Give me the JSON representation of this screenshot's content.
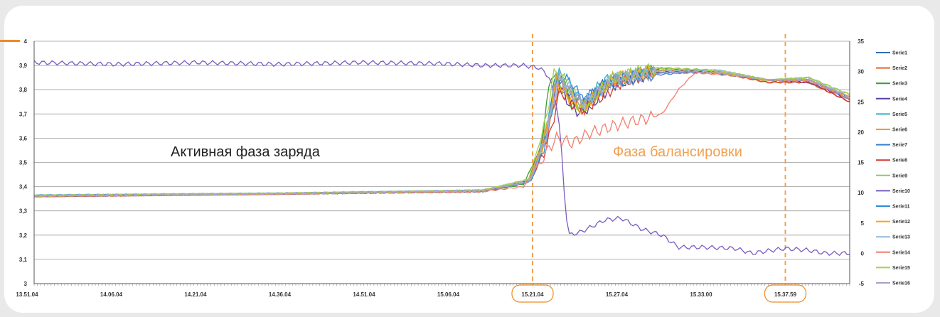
{
  "chart_data": {
    "type": "line",
    "x_ticks": [
      "13.51.04",
      "14.06.04",
      "14.21.04",
      "14.36.04",
      "14.51.04",
      "15.06.04",
      "15.21.04",
      "15.27.04",
      "15.33.00",
      "15.37.59"
    ],
    "highlighted_x_ticks": [
      "15.21.04",
      "15.37.59"
    ],
    "y_left": {
      "min": 3,
      "max": 4,
      "ticks": [
        "3",
        "3,1",
        "3,2",
        "3,3",
        "3,4",
        "3,5",
        "3,6",
        "3,7",
        "3,8",
        "3,9",
        "4"
      ]
    },
    "y_right": {
      "min": -5,
      "max": 35,
      "ticks": [
        "-5",
        "0",
        "5",
        "10",
        "15",
        "20",
        "25",
        "30",
        "35"
      ]
    },
    "grid": true,
    "legend_position": "right",
    "annotations": [
      {
        "text": "Активная фаза заряда",
        "color": "#222222"
      },
      {
        "text": "Фаза балансировки",
        "color": "#f0a050"
      }
    ],
    "phase_boundaries": [
      "15.21.04",
      "15.37.59"
    ],
    "series": [
      {
        "name": "Serie1",
        "color": "#2e6db4",
        "axis": "left",
        "points": [
          [
            0,
            3.36
          ],
          [
            0.3,
            3.37
          ],
          [
            0.55,
            3.38
          ],
          [
            0.605,
            3.42
          ],
          [
            0.625,
            3.57
          ],
          [
            0.64,
            3.86
          ],
          [
            0.655,
            3.8
          ],
          [
            0.67,
            3.73
          ],
          [
            0.7,
            3.83
          ],
          [
            0.75,
            3.88
          ],
          [
            0.82,
            3.88
          ],
          [
            0.9,
            3.84
          ],
          [
            0.95,
            3.84
          ],
          [
            1,
            3.76
          ]
        ]
      },
      {
        "name": "Serie2",
        "color": "#e8632b",
        "axis": "left",
        "points": [
          [
            0,
            3.36
          ],
          [
            0.3,
            3.37
          ],
          [
            0.55,
            3.385
          ],
          [
            0.61,
            3.43
          ],
          [
            0.63,
            3.62
          ],
          [
            0.645,
            3.85
          ],
          [
            0.66,
            3.77
          ],
          [
            0.675,
            3.72
          ],
          [
            0.71,
            3.84
          ],
          [
            0.76,
            3.88
          ],
          [
            0.83,
            3.88
          ],
          [
            0.9,
            3.84
          ],
          [
            0.95,
            3.83
          ],
          [
            1,
            3.75
          ]
        ]
      },
      {
        "name": "Serie3",
        "color": "#33a02c",
        "axis": "left",
        "points": [
          [
            0,
            3.36
          ],
          [
            0.3,
            3.37
          ],
          [
            0.55,
            3.38
          ],
          [
            0.6,
            3.41
          ],
          [
            0.62,
            3.55
          ],
          [
            0.635,
            3.88
          ],
          [
            0.65,
            3.79
          ],
          [
            0.665,
            3.71
          ],
          [
            0.7,
            3.82
          ],
          [
            0.77,
            3.89
          ],
          [
            0.84,
            3.87
          ],
          [
            0.9,
            3.83
          ],
          [
            0.95,
            3.84
          ],
          [
            1,
            3.77
          ]
        ]
      },
      {
        "name": "Serie4",
        "color": "#5b3fa0",
        "axis": "left",
        "points": [
          [
            0,
            3.36
          ],
          [
            0.3,
            3.37
          ],
          [
            0.55,
            3.385
          ],
          [
            0.605,
            3.42
          ],
          [
            0.625,
            3.6
          ],
          [
            0.64,
            3.83
          ],
          [
            0.655,
            3.75
          ],
          [
            0.67,
            3.7
          ],
          [
            0.71,
            3.82
          ],
          [
            0.76,
            3.87
          ],
          [
            0.83,
            3.88
          ],
          [
            0.9,
            3.84
          ],
          [
            0.95,
            3.83
          ],
          [
            1,
            3.76
          ]
        ]
      },
      {
        "name": "Serie5",
        "color": "#2fb0c8",
        "axis": "left",
        "points": [
          [
            0,
            3.365
          ],
          [
            0.3,
            3.372
          ],
          [
            0.55,
            3.385
          ],
          [
            0.61,
            3.43
          ],
          [
            0.628,
            3.63
          ],
          [
            0.642,
            3.87
          ],
          [
            0.658,
            3.82
          ],
          [
            0.672,
            3.74
          ],
          [
            0.7,
            3.84
          ],
          [
            0.76,
            3.87
          ],
          [
            0.83,
            3.87
          ],
          [
            0.9,
            3.84
          ],
          [
            0.95,
            3.84
          ],
          [
            1,
            3.77
          ]
        ]
      },
      {
        "name": "Serie6",
        "color": "#f39a1e",
        "axis": "left",
        "points": [
          [
            0,
            3.362
          ],
          [
            0.3,
            3.371
          ],
          [
            0.55,
            3.384
          ],
          [
            0.608,
            3.43
          ],
          [
            0.627,
            3.6
          ],
          [
            0.641,
            3.84
          ],
          [
            0.656,
            3.76
          ],
          [
            0.671,
            3.72
          ],
          [
            0.71,
            3.85
          ],
          [
            0.77,
            3.88
          ],
          [
            0.84,
            3.87
          ],
          [
            0.9,
            3.83
          ],
          [
            0.95,
            3.84
          ],
          [
            1,
            3.76
          ]
        ]
      },
      {
        "name": "Serie7",
        "color": "#3c7fd0",
        "axis": "left",
        "points": [
          [
            0,
            3.363
          ],
          [
            0.3,
            3.372
          ],
          [
            0.55,
            3.383
          ],
          [
            0.606,
            3.42
          ],
          [
            0.626,
            3.58
          ],
          [
            0.64,
            3.85
          ],
          [
            0.657,
            3.8
          ],
          [
            0.672,
            3.76
          ],
          [
            0.71,
            3.83
          ],
          [
            0.76,
            3.86
          ],
          [
            0.83,
            3.88
          ],
          [
            0.9,
            3.84
          ],
          [
            0.95,
            3.84
          ],
          [
            1,
            3.77
          ]
        ]
      },
      {
        "name": "Serie8",
        "color": "#cf3a33",
        "axis": "left",
        "points": [
          [
            0,
            3.36
          ],
          [
            0.3,
            3.37
          ],
          [
            0.55,
            3.38
          ],
          [
            0.61,
            3.43
          ],
          [
            0.63,
            3.58
          ],
          [
            0.645,
            3.8
          ],
          [
            0.66,
            3.74
          ],
          [
            0.675,
            3.72
          ],
          [
            0.72,
            3.83
          ],
          [
            0.77,
            3.88
          ],
          [
            0.84,
            3.87
          ],
          [
            0.9,
            3.83
          ],
          [
            0.95,
            3.83
          ],
          [
            1,
            3.75
          ]
        ]
      },
      {
        "name": "Serie9",
        "color": "#96c36a",
        "axis": "left",
        "points": [
          [
            0,
            3.364
          ],
          [
            0.3,
            3.372
          ],
          [
            0.55,
            3.384
          ],
          [
            0.607,
            3.42
          ],
          [
            0.627,
            3.62
          ],
          [
            0.642,
            3.88
          ],
          [
            0.657,
            3.81
          ],
          [
            0.673,
            3.73
          ],
          [
            0.71,
            3.85
          ],
          [
            0.77,
            3.89
          ],
          [
            0.84,
            3.88
          ],
          [
            0.9,
            3.84
          ],
          [
            0.95,
            3.85
          ],
          [
            1,
            3.78
          ]
        ]
      },
      {
        "name": "Serie10",
        "color": "#7a5cc0",
        "axis": "right",
        "points": [
          [
            0,
            31.5
          ],
          [
            0.1,
            31.2
          ],
          [
            0.2,
            31.5
          ],
          [
            0.3,
            31.2
          ],
          [
            0.4,
            31.5
          ],
          [
            0.5,
            31.3
          ],
          [
            0.55,
            31.0
          ],
          [
            0.6,
            31.0
          ],
          [
            0.62,
            30.6
          ],
          [
            0.632,
            29
          ],
          [
            0.64,
            25
          ],
          [
            0.645,
            20
          ],
          [
            0.65,
            10
          ],
          [
            0.655,
            3
          ],
          [
            0.67,
            3.5
          ],
          [
            0.7,
            5.5
          ],
          [
            0.72,
            5.8
          ],
          [
            0.745,
            4
          ],
          [
            0.77,
            3
          ],
          [
            0.79,
            1
          ],
          [
            0.82,
            1
          ],
          [
            0.86,
            0.8
          ],
          [
            0.88,
            0
          ],
          [
            0.92,
            0.8
          ],
          [
            0.95,
            0.5
          ],
          [
            0.97,
            0
          ],
          [
            1,
            0
          ]
        ]
      },
      {
        "name": "Serie11",
        "color": "#2a8fd6",
        "axis": "left",
        "points": [
          [
            0,
            3.363
          ],
          [
            0.3,
            3.371
          ],
          [
            0.55,
            3.384
          ],
          [
            0.609,
            3.42
          ],
          [
            0.628,
            3.59
          ],
          [
            0.643,
            3.86
          ],
          [
            0.658,
            3.83
          ],
          [
            0.674,
            3.75
          ],
          [
            0.71,
            3.84
          ],
          [
            0.76,
            3.87
          ],
          [
            0.83,
            3.87
          ],
          [
            0.9,
            3.84
          ],
          [
            0.95,
            3.84
          ],
          [
            1,
            3.76
          ]
        ]
      },
      {
        "name": "Serie12",
        "color": "#f5a623",
        "axis": "left",
        "points": [
          [
            0,
            3.361
          ],
          [
            0.3,
            3.371
          ],
          [
            0.55,
            3.383
          ],
          [
            0.607,
            3.43
          ],
          [
            0.626,
            3.61
          ],
          [
            0.641,
            3.83
          ],
          [
            0.656,
            3.77
          ],
          [
            0.672,
            3.73
          ],
          [
            0.71,
            3.84
          ],
          [
            0.77,
            3.88
          ],
          [
            0.84,
            3.87
          ],
          [
            0.9,
            3.84
          ],
          [
            0.95,
            3.84
          ],
          [
            1,
            3.77
          ]
        ]
      },
      {
        "name": "Serie13",
        "color": "#8fb8e0",
        "axis": "left",
        "points": [
          [
            0,
            3.364
          ],
          [
            0.3,
            3.373
          ],
          [
            0.55,
            3.385
          ],
          [
            0.61,
            3.43
          ],
          [
            0.629,
            3.62
          ],
          [
            0.644,
            3.86
          ],
          [
            0.659,
            3.8
          ],
          [
            0.674,
            3.74
          ],
          [
            0.71,
            3.85
          ],
          [
            0.77,
            3.88
          ],
          [
            0.84,
            3.88
          ],
          [
            0.9,
            3.84
          ],
          [
            0.95,
            3.85
          ],
          [
            1,
            3.77
          ]
        ]
      },
      {
        "name": "Serie14",
        "color": "#f07f6e",
        "axis": "left",
        "points": [
          [
            0,
            3.36
          ],
          [
            0.3,
            3.37
          ],
          [
            0.55,
            3.38
          ],
          [
            0.6,
            3.4
          ],
          [
            0.62,
            3.5
          ],
          [
            0.64,
            3.6
          ],
          [
            0.66,
            3.58
          ],
          [
            0.68,
            3.62
          ],
          [
            0.72,
            3.66
          ],
          [
            0.75,
            3.68
          ],
          [
            0.77,
            3.7
          ],
          [
            0.79,
            3.8
          ],
          [
            0.81,
            3.87
          ],
          [
            0.85,
            3.86
          ],
          [
            0.9,
            3.84
          ],
          [
            0.95,
            3.84
          ],
          [
            1,
            3.76
          ]
        ]
      },
      {
        "name": "Serie15",
        "color": "#a8d04a",
        "axis": "left",
        "points": [
          [
            0,
            3.362
          ],
          [
            0.3,
            3.372
          ],
          [
            0.55,
            3.384
          ],
          [
            0.606,
            3.43
          ],
          [
            0.625,
            3.64
          ],
          [
            0.639,
            3.89
          ],
          [
            0.655,
            3.8
          ],
          [
            0.671,
            3.71
          ],
          [
            0.71,
            3.85
          ],
          [
            0.76,
            3.89
          ],
          [
            0.83,
            3.88
          ],
          [
            0.9,
            3.84
          ],
          [
            0.95,
            3.85
          ],
          [
            1,
            3.78
          ]
        ]
      },
      {
        "name": "Serie16",
        "color": "#a8a0cc",
        "axis": "left",
        "points": [
          [
            0,
            3.362
          ],
          [
            0.3,
            3.371
          ],
          [
            0.55,
            3.384
          ],
          [
            0.608,
            3.42
          ],
          [
            0.627,
            3.6
          ],
          [
            0.642,
            3.85
          ],
          [
            0.657,
            3.79
          ],
          [
            0.673,
            3.74
          ],
          [
            0.71,
            3.84
          ],
          [
            0.77,
            3.87
          ],
          [
            0.84,
            3.87
          ],
          [
            0.9,
            3.84
          ],
          [
            0.95,
            3.84
          ],
          [
            1,
            3.77
          ]
        ]
      }
    ]
  },
  "colors": {
    "phase_line": "#f0a050",
    "grid": "#9a9a9a",
    "accent": "#f08a24",
    "annotation_active": "#222222"
  }
}
